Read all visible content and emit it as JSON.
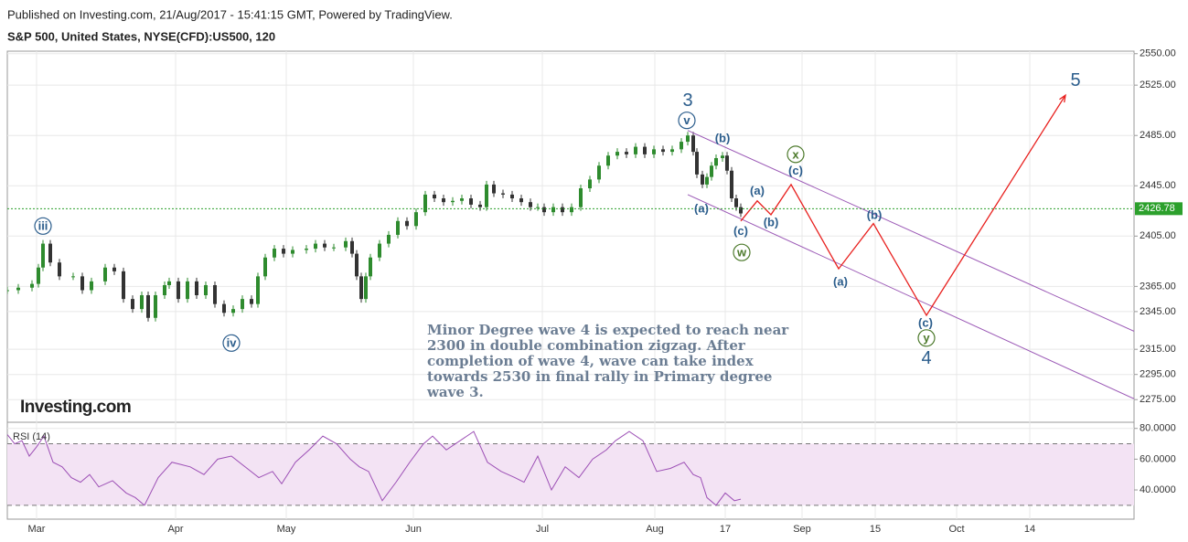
{
  "header": {
    "published": "Published on Investing.com, 21/Aug/2017 - 15:41:15 GMT, Powered by TradingView.",
    "symbol": "S&P 500, United States, NYSE(CFD):US500, 120"
  },
  "chart_data": [
    {
      "type": "candlestick",
      "x": [
        0,
        12,
        27,
        34,
        39,
        47,
        57,
        72,
        82,
        92,
        107,
        117,
        127,
        137,
        147,
        154,
        162,
        172,
        177,
        187,
        197,
        207,
        217,
        227,
        237,
        247,
        257,
        267,
        274,
        282,
        292,
        302,
        312,
        327,
        337,
        347,
        357,
        370,
        377,
        382,
        387,
        392,
        397,
        407,
        417,
        427,
        437,
        447,
        457,
        467,
        477,
        487,
        497,
        507,
        517,
        524,
        532,
        542,
        552,
        562,
        572,
        580,
        587,
        597,
        607,
        617,
        627,
        637,
        647,
        657,
        667,
        677,
        687,
        697,
        707,
        717,
        727,
        737,
        744,
        750,
        754,
        760,
        765,
        770,
        775,
        782,
        787,
        792,
        797,
        802
      ],
      "values": [
        2362,
        2364,
        2367,
        2380,
        2399,
        2384,
        2373,
        2373,
        2362,
        2369,
        2380,
        2377,
        2355,
        2347,
        2358,
        2340,
        2358,
        2366,
        2369,
        2355,
        2369,
        2358,
        2366,
        2351,
        2344,
        2347,
        2355,
        2351,
        2373,
        2388,
        2395,
        2391,
        2394,
        2395,
        2399,
        2396,
        2396,
        2401,
        2391,
        2373,
        2355,
        2373,
        2388,
        2399,
        2406,
        2417,
        2413,
        2424,
        2438,
        2435,
        2432,
        2433,
        2435,
        2430,
        2428,
        2446,
        2439,
        2438,
        2435,
        2432,
        2428,
        2428,
        2424,
        2428,
        2424,
        2428,
        2443,
        2450,
        2461,
        2469,
        2472,
        2470,
        2476,
        2470,
        2474,
        2472,
        2474,
        2480,
        2485,
        2472,
        2454,
        2446,
        2452,
        2461,
        2467,
        2469,
        2457,
        2435,
        2428,
        2423
      ],
      "up_color": "#2e8b2e",
      "down_color": "#333333",
      "xlim": [
        0,
        1232
      ],
      "xticks": [
        {
          "value": 32,
          "label": "Mar"
        },
        {
          "value": 184,
          "label": "Apr"
        },
        {
          "value": 305,
          "label": "May"
        },
        {
          "value": 444,
          "label": "Jun"
        },
        {
          "value": 585,
          "label": "Jul"
        },
        {
          "value": 708,
          "label": "Aug"
        },
        {
          "value": 785,
          "label": "17"
        },
        {
          "value": 869,
          "label": "Sep"
        },
        {
          "value": 949,
          "label": "15"
        },
        {
          "value": 1038,
          "label": "Oct"
        },
        {
          "value": 1118,
          "label": "14"
        }
      ],
      "ylim": [
        2257,
        2552
      ],
      "yticks": [
        {
          "value": 2550,
          "label": "2550.00"
        },
        {
          "value": 2525,
          "label": "2525.00"
        },
        {
          "value": 2485,
          "label": "2485.00"
        },
        {
          "value": 2445,
          "label": "2445.00"
        },
        {
          "value": 2405,
          "label": "2405.00"
        },
        {
          "value": 2365,
          "label": "2365.00"
        },
        {
          "value": 2345,
          "label": "2345.00"
        },
        {
          "value": 2315,
          "label": "2315.00"
        },
        {
          "value": 2295,
          "label": "2295.00"
        },
        {
          "value": 2275,
          "label": "2275.00"
        }
      ],
      "grid": true,
      "last_price": 2426.78,
      "last_price_color": "#2ca02c",
      "projection": {
        "color": "#e8201e",
        "x": [
          802,
          820,
          835,
          857,
          909,
          947,
          1005,
          1157
        ],
        "values": [
          2417,
          2433,
          2422,
          2446,
          2379,
          2415,
          2342,
          2517
        ]
      },
      "channels": [
        {
          "color": "#9b59b6",
          "x": [
            744,
            1282
          ],
          "values": [
            2489,
            2313
          ]
        },
        {
          "color": "#9b59b6",
          "x": [
            744,
            1282
          ],
          "values": [
            2438,
            2259
          ]
        }
      ],
      "annotations": [
        {
          "text": "3",
          "x": 744,
          "y": 2513,
          "style": "large"
        },
        {
          "text": "v",
          "x": 743,
          "y": 2497,
          "style": "circle"
        },
        {
          "text": "(b)",
          "x": 782,
          "y": 2483,
          "style": "paren"
        },
        {
          "text": "x",
          "x": 862,
          "y": 2470,
          "style": "circle-green"
        },
        {
          "text": "(c)",
          "x": 862,
          "y": 2457,
          "style": "paren"
        },
        {
          "text": "(a)",
          "x": 820,
          "y": 2441,
          "style": "paren"
        },
        {
          "text": "(a)",
          "x": 759,
          "y": 2427,
          "style": "paren"
        },
        {
          "text": "(b)",
          "x": 835,
          "y": 2416,
          "style": "paren"
        },
        {
          "text": "(c)",
          "x": 802,
          "y": 2409,
          "style": "paren"
        },
        {
          "text": "w",
          "x": 803,
          "y": 2392,
          "style": "circle-green"
        },
        {
          "text": "(b)",
          "x": 948,
          "y": 2422,
          "style": "paren"
        },
        {
          "text": "(a)",
          "x": 911,
          "y": 2369,
          "style": "paren"
        },
        {
          "text": "(c)",
          "x": 1004,
          "y": 2336,
          "style": "paren"
        },
        {
          "text": "y",
          "x": 1005,
          "y": 2324,
          "style": "circle-green"
        },
        {
          "text": "4",
          "x": 1005,
          "y": 2308,
          "style": "large"
        },
        {
          "text": "5",
          "x": 1168,
          "y": 2529,
          "style": "large"
        },
        {
          "text": "iii",
          "x": 39,
          "y": 2413,
          "style": "circle"
        },
        {
          "text": "iv",
          "x": 245,
          "y": 2320,
          "style": "circle"
        }
      ],
      "note": [
        "Minor Degree wave 4 is expected to reach near",
        "2300 in double combination zigzag. After",
        "completion of wave 4, wave can take index",
        "towards 2530 in final rally in Primary degree",
        "wave 3."
      ],
      "logo": "Investing.com"
    },
    {
      "type": "line",
      "title": "RSI (14)",
      "color": "#9c4fb5",
      "band_color": "#f3e3f4",
      "x": [
        0,
        8,
        16,
        24,
        32,
        40,
        50,
        60,
        70,
        80,
        90,
        100,
        115,
        130,
        140,
        150,
        165,
        180,
        200,
        215,
        230,
        245,
        260,
        275,
        290,
        300,
        315,
        330,
        345,
        360,
        375,
        385,
        395,
        410,
        425,
        440,
        455,
        465,
        480,
        495,
        510,
        525,
        540,
        555,
        565,
        580,
        595,
        610,
        625,
        640,
        655,
        665,
        680,
        695,
        710,
        725,
        740,
        750,
        758,
        765,
        775,
        785,
        795,
        802
      ],
      "values": [
        76,
        70,
        72,
        62,
        68,
        75,
        58,
        55,
        48,
        45,
        50,
        42,
        46,
        38,
        35,
        30,
        48,
        58,
        55,
        50,
        60,
        62,
        55,
        48,
        52,
        44,
        58,
        66,
        75,
        70,
        60,
        55,
        52,
        33,
        45,
        58,
        70,
        75,
        66,
        72,
        78,
        58,
        52,
        48,
        45,
        62,
        40,
        55,
        48,
        60,
        66,
        72,
        78,
        72,
        52,
        54,
        58,
        50,
        48,
        35,
        30,
        38,
        33,
        34
      ],
      "xlim": [
        0,
        1232
      ],
      "ylim": [
        21,
        84
      ],
      "bands": [
        30,
        70
      ],
      "yticks": [
        {
          "value": 80,
          "label": "80.0000"
        },
        {
          "value": 60,
          "label": "60.0000"
        },
        {
          "value": 40,
          "label": "40.0000"
        }
      ],
      "grid": true
    }
  ]
}
